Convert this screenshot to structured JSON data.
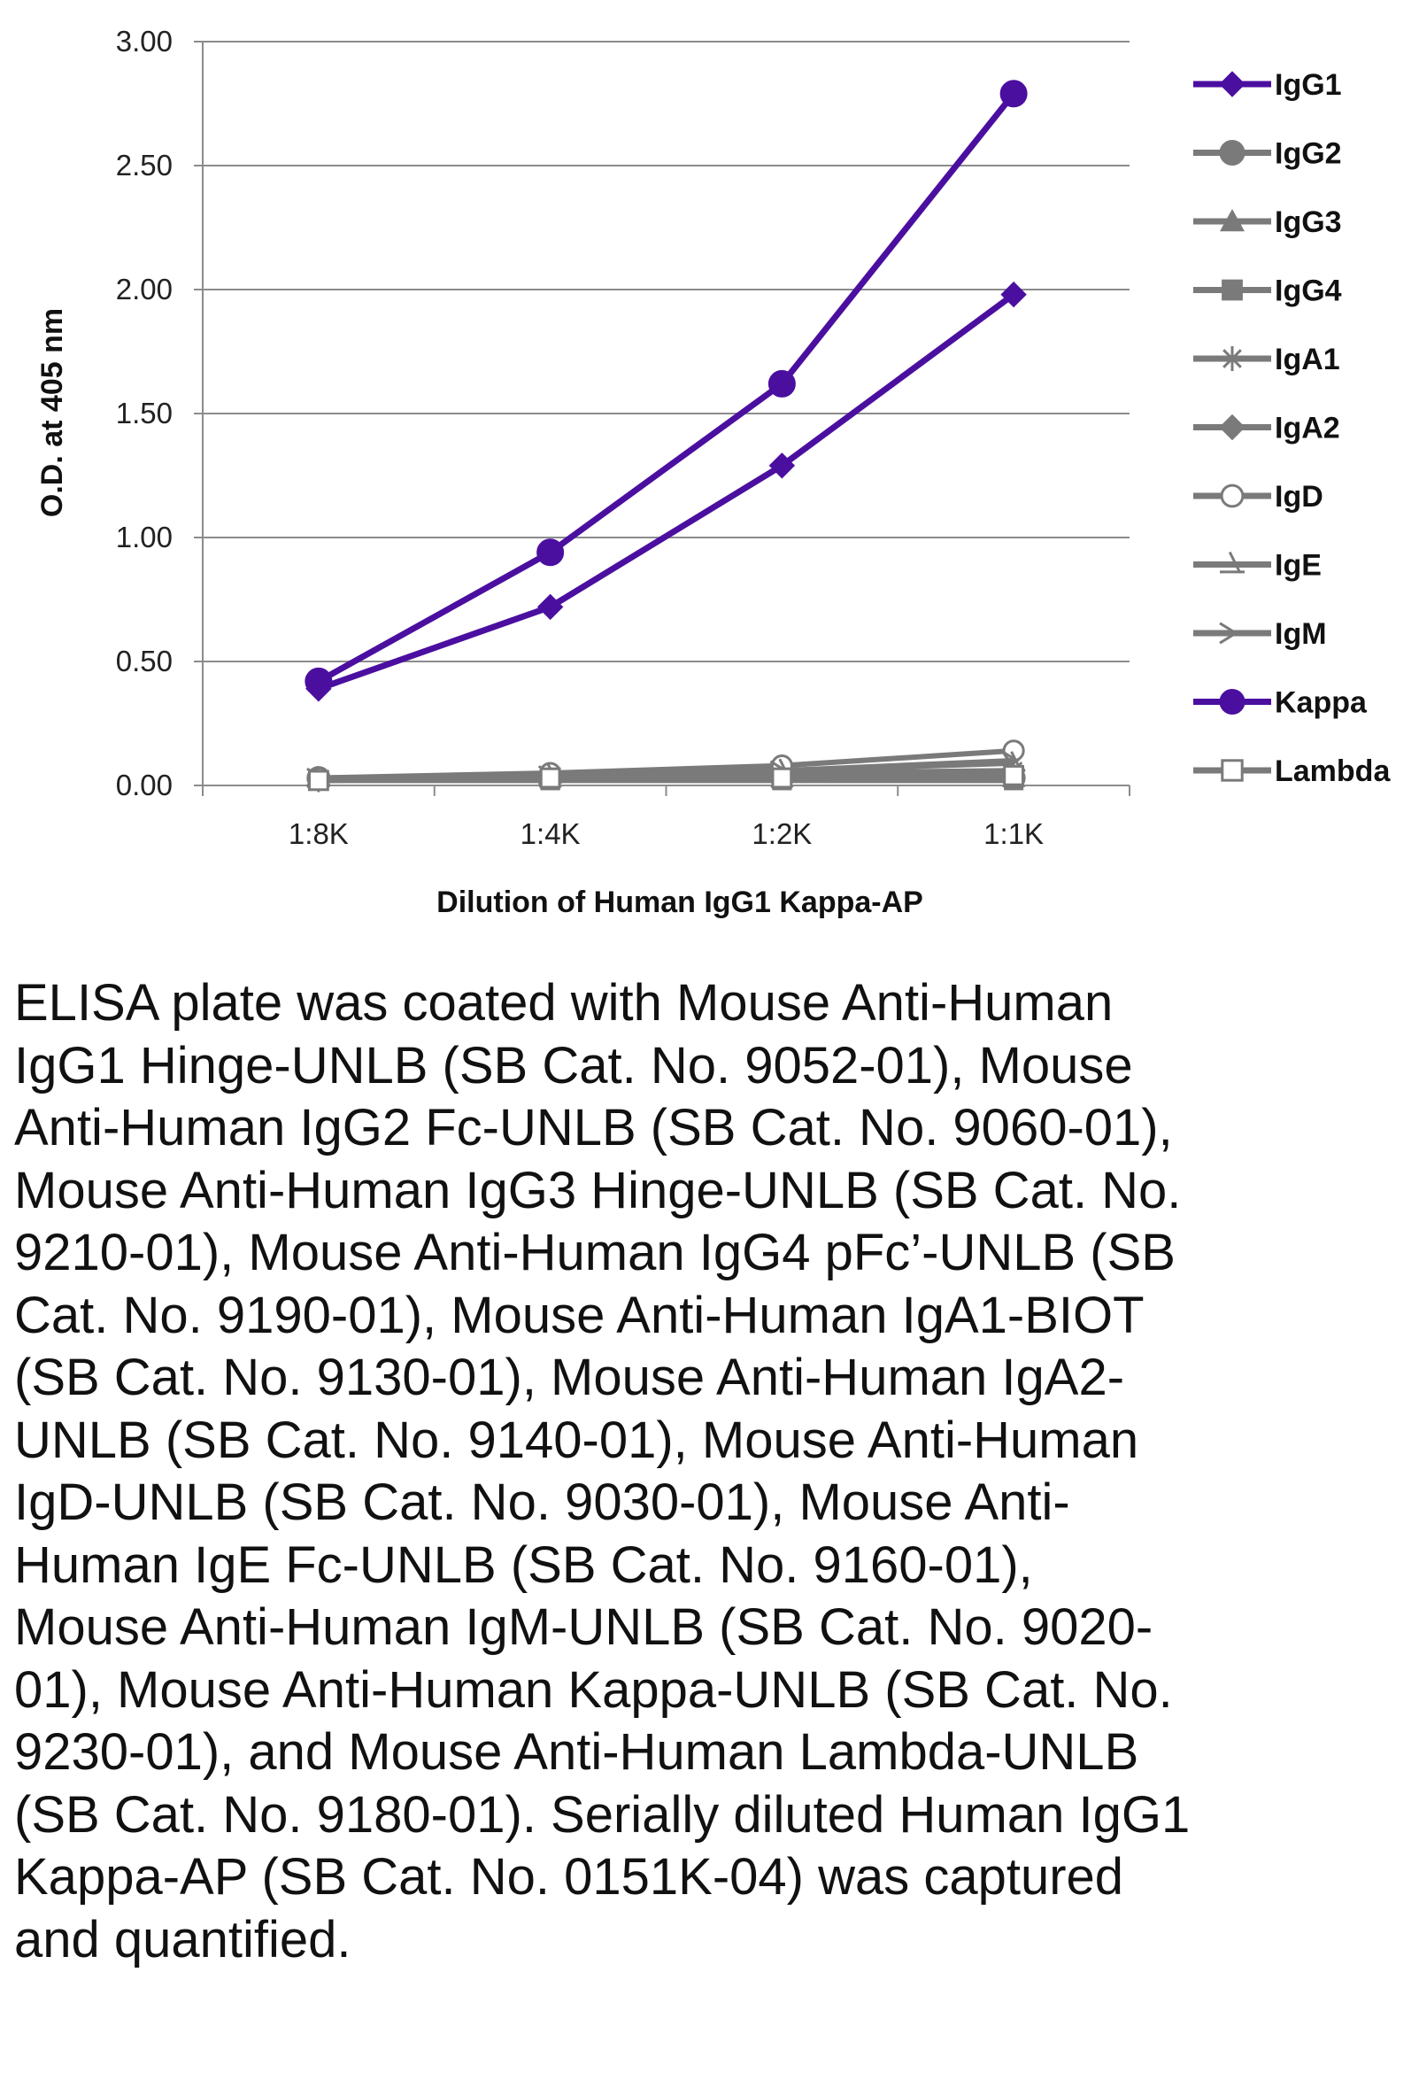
{
  "chart_data": {
    "type": "line",
    "title": "",
    "xlabel": "Dilution of Human IgG1 Kappa-AP",
    "ylabel": "O.D. at 405 nm",
    "categories": [
      "1:8K",
      "1:4K",
      "1:2K",
      "1:1K"
    ],
    "ylim": [
      0,
      3
    ],
    "yticks": [
      "0.00",
      "0.50",
      "1.00",
      "1.50",
      "2.00",
      "2.50",
      "3.00"
    ],
    "grid": "horizontal",
    "legend_position": "right",
    "series": [
      {
        "name": "IgG1",
        "values": [
          0.39,
          0.72,
          1.29,
          1.98
        ],
        "color": "#4B0FA0",
        "marker": "diamond"
      },
      {
        "name": "IgG2",
        "values": [
          0.03,
          0.03,
          0.03,
          0.03
        ],
        "color": "#7A7A7A",
        "marker": "circle"
      },
      {
        "name": "IgG3",
        "values": [
          0.03,
          0.03,
          0.03,
          0.03
        ],
        "color": "#7A7A7A",
        "marker": "triangle"
      },
      {
        "name": "IgG4",
        "values": [
          0.02,
          0.02,
          0.02,
          0.02
        ],
        "color": "#7A7A7A",
        "marker": "square"
      },
      {
        "name": "IgA1",
        "values": [
          0.03,
          0.04,
          0.05,
          0.06
        ],
        "color": "#7A7A7A",
        "marker": "star"
      },
      {
        "name": "IgA2",
        "values": [
          0.02,
          0.03,
          0.03,
          0.03
        ],
        "color": "#7A7A7A",
        "marker": "diamond"
      },
      {
        "name": "IgD",
        "values": [
          0.03,
          0.05,
          0.08,
          0.14
        ],
        "color": "#7A7A7A",
        "marker": "open-circle"
      },
      {
        "name": "IgE",
        "values": [
          0.03,
          0.04,
          0.06,
          0.09
        ],
        "color": "#7A7A7A",
        "marker": "half-triangle"
      },
      {
        "name": "IgM",
        "values": [
          0.03,
          0.04,
          0.06,
          0.1
        ],
        "color": "#7A7A7A",
        "marker": "arrow"
      },
      {
        "name": "Kappa",
        "values": [
          0.42,
          0.94,
          1.62,
          2.79
        ],
        "color": "#4B0FA0",
        "marker": "circle"
      },
      {
        "name": "Lambda",
        "values": [
          0.02,
          0.03,
          0.03,
          0.04
        ],
        "color": "#7A7A7A",
        "marker": "open-square"
      }
    ]
  },
  "caption": "ELISA plate was coated with Mouse Anti-Human IgG1 Hinge-UNLB (SB Cat. No. 9052-01), Mouse Anti-Human IgG2 Fc-UNLB (SB Cat. No. 9060-01), Mouse Anti-Human IgG3 Hinge-UNLB (SB Cat. No. 9210-01), Mouse Anti-Human IgG4 pFc’-UNLB (SB Cat. No. 9190-01), Mouse Anti-Human IgA1-BIOT (SB Cat. No. 9130-01), Mouse Anti-Human IgA2-UNLB (SB Cat. No. 9140-01),  Mouse Anti-Human IgD-UNLB (SB Cat. No. 9030-01), Mouse Anti-Human IgE Fc-UNLB (SB Cat. No. 9160-01), Mouse Anti-Human IgM-UNLB (SB Cat. No. 9020-01), Mouse Anti-Human Kappa-UNLB (SB Cat. No. 9230-01), and Mouse Anti-Human Lambda-UNLB (SB Cat. No. 9180-01).  Serially diluted Human IgG1 Kappa-AP (SB Cat. No. 0151K-04) was captured and quantified."
}
